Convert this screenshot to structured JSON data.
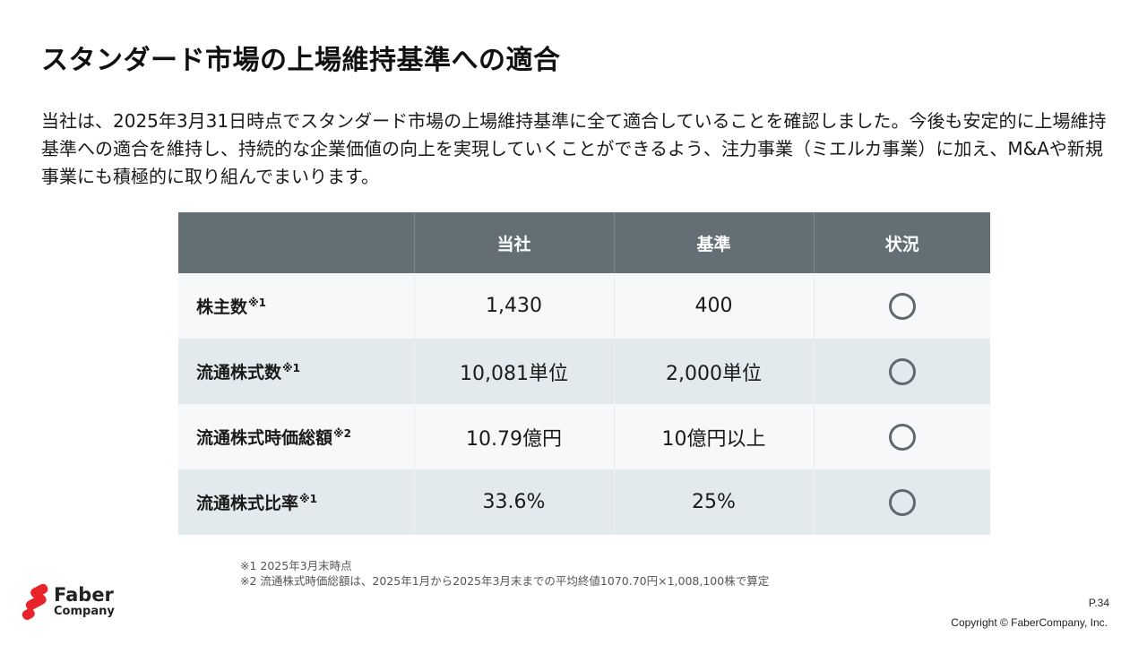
{
  "title": "スタンダード市場の上場維持基準への適合",
  "intro": "当社は、2025年3月31日時点でスタンダード市場の上場維持基準に全て適合していることを確認しました。今後も安定的に上場維持基準への適合を維持し、持続的な企業価値の向上を実現していくことができるよう、注力事業（ミエルカ事業）に加え、M&Aや新規事業にも積極的に取り組んでまいります。",
  "table": {
    "headers": [
      "",
      "当社",
      "基準",
      "状況"
    ],
    "rows": [
      {
        "label": "株主数",
        "note": "※1",
        "company": "1,430",
        "standard": "400",
        "status": "○"
      },
      {
        "label": "流通株式数",
        "note": "※1",
        "company": "10,081単位",
        "standard": "2,000単位",
        "status": "○"
      },
      {
        "label": "流通株式時価総額",
        "note": "※2",
        "company": "10.79億円",
        "standard": "10億円以上",
        "status": "○"
      },
      {
        "label": "流通株式比率",
        "note": "※1",
        "company": "33.6%",
        "standard": "25%",
        "status": "○"
      }
    ]
  },
  "notes": [
    "※1  2025年3月末時点",
    "※2  流通株式時価総額は、2025年1月から2025年3月末までの平均終値1070.70円×1,008,100株で算定"
  ],
  "logo": {
    "line1": "Faber",
    "line2": "Company",
    "accent_color": "#e8232a"
  },
  "page_number": "P.34",
  "copyright": "Copyright © FaberCompany, Inc."
}
